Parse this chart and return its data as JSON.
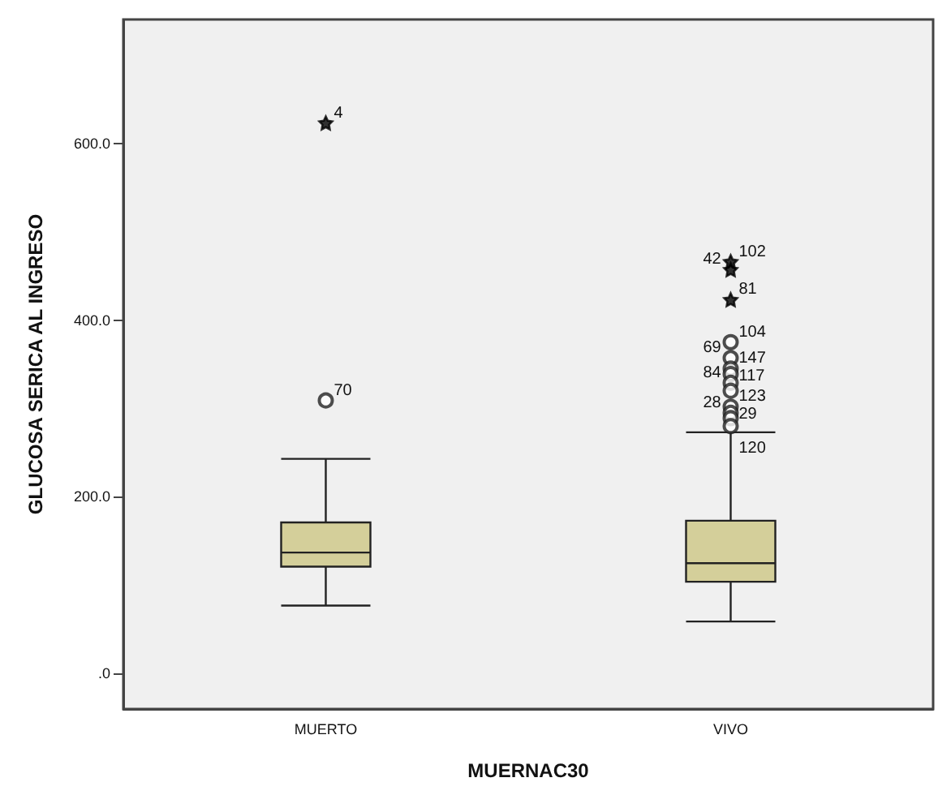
{
  "chart_data": {
    "type": "box",
    "categories": [
      "MUERTO",
      "VIVO"
    ],
    "xlabel": "MUERNAC30",
    "ylabel": "GLUCOSA SERICA AL INGRESO",
    "ylim": [
      -40,
      740
    ],
    "yticks": [
      {
        "value": 0,
        "label": ".0"
      },
      {
        "value": 200,
        "label": "200.0"
      },
      {
        "value": 400,
        "label": "400.0"
      },
      {
        "value": 600,
        "label": "600.0"
      }
    ],
    "grid": false,
    "series": [
      {
        "color": "#d4cf9a",
        "boxes": [
          {
            "low": 77,
            "q1": 121,
            "median": 137,
            "q3": 171,
            "high": 243
          },
          {
            "low": 59,
            "q1": 104,
            "median": 125,
            "q3": 173,
            "high": 273
          }
        ]
      },
      {
        "type": "scatter",
        "color": "#222222",
        "marker": "circle",
        "x": [
          "MUERTO",
          "VIVO",
          "VIVO",
          "VIVO",
          "VIVO",
          "VIVO",
          "VIVO",
          "VIVO",
          "VIVO",
          "VIVO",
          "VIVO"
        ],
        "values": [
          309,
          375,
          357,
          345,
          339,
          329,
          320,
          302,
          295,
          289,
          280
        ]
      },
      {
        "type": "scatter",
        "color": "#000000",
        "marker": "star",
        "x": [
          "MUERTO",
          "VIVO",
          "VIVO",
          "VIVO"
        ],
        "values": [
          623,
          466,
          457,
          423
        ]
      }
    ],
    "annotations": [
      {
        "text": "4",
        "x": "MUERTO",
        "y": 623
      },
      {
        "text": "70",
        "x": "MUERTO",
        "y": 309
      },
      {
        "text": "102",
        "x": "VIVO",
        "y": 466
      },
      {
        "text": "42",
        "x": "VIVO",
        "y": 457
      },
      {
        "text": "81",
        "x": "VIVO",
        "y": 423
      },
      {
        "text": "104",
        "x": "VIVO",
        "y": 375
      },
      {
        "text": "69",
        "x": "VIVO",
        "y": 357
      },
      {
        "text": "147",
        "x": "VIVO",
        "y": 345
      },
      {
        "text": "84",
        "x": "VIVO",
        "y": 329
      },
      {
        "text": "117",
        "x": "VIVO",
        "y": 329
      },
      {
        "text": "123",
        "x": "VIVO",
        "y": 302
      },
      {
        "text": "28",
        "x": "VIVO",
        "y": 295
      },
      {
        "text": "29",
        "x": "VIVO",
        "y": 289
      },
      {
        "text": "120",
        "x": "VIVO",
        "y": 280
      }
    ]
  }
}
